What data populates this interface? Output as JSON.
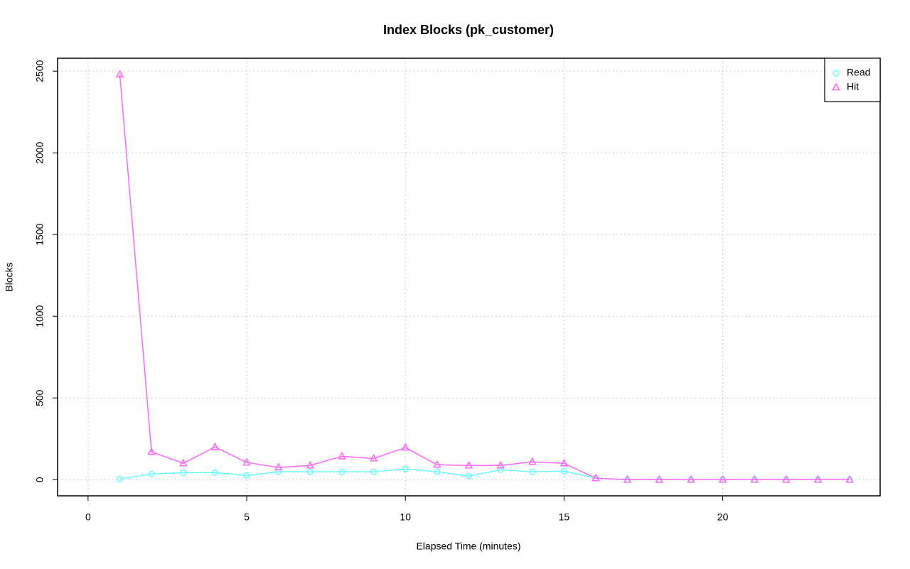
{
  "chart_data": {
    "type": "line",
    "title": "Index Blocks (pk_customer)",
    "x_label": "Elapsed Time (minutes)",
    "y_label": "Blocks",
    "x": [
      1,
      2,
      3,
      4,
      5,
      6,
      7,
      8,
      9,
      10,
      11,
      12,
      13,
      14,
      15,
      16,
      17,
      18,
      19,
      20,
      21,
      22,
      23,
      24
    ],
    "series": [
      {
        "name": "Read",
        "color": "#66ffff",
        "marker": "circle",
        "values": [
          4,
          35,
          43,
          43,
          26,
          48,
          48,
          48,
          48,
          65,
          48,
          22,
          61,
          48,
          52,
          9,
          0,
          0,
          0,
          0,
          0,
          0,
          0,
          0
        ]
      },
      {
        "name": "Hit",
        "color": "#ff66ff",
        "marker": "triangle",
        "values": [
          2480,
          170,
          100,
          200,
          105,
          75,
          87,
          143,
          130,
          196,
          91,
          87,
          87,
          109,
          100,
          9,
          0,
          0,
          0,
          0,
          0,
          0,
          0,
          0
        ]
      }
    ],
    "xlim": [
      -0.96,
      24.96
    ],
    "xticks": [
      0,
      5,
      10,
      15,
      20
    ],
    "ylim": [
      -99,
      2579
    ],
    "yticks": [
      0,
      500,
      1000,
      1500,
      2000,
      2500
    ],
    "grid": true,
    "legend": "top-right"
  }
}
